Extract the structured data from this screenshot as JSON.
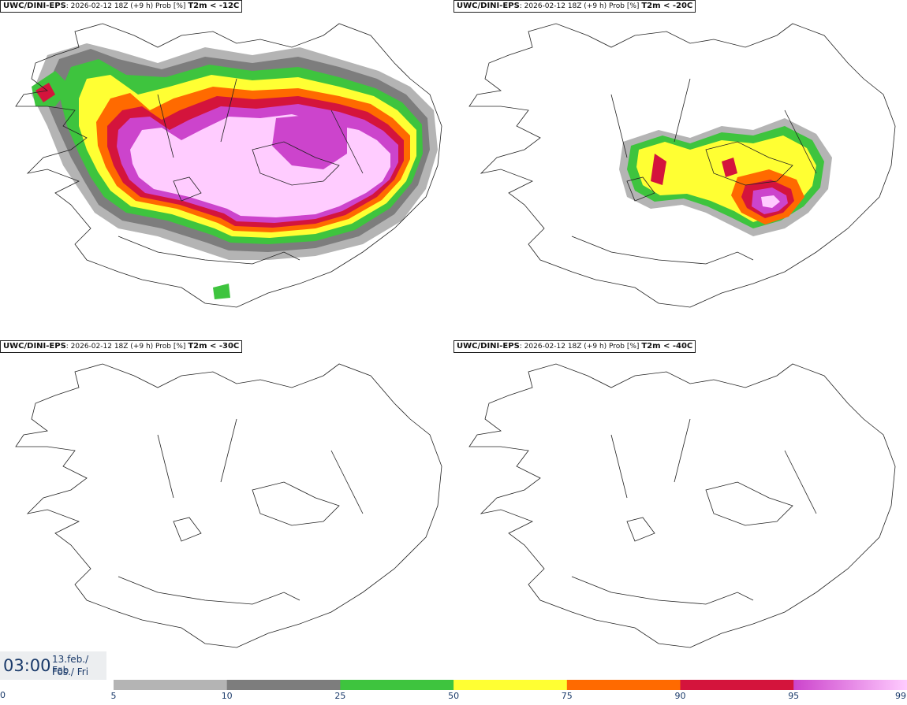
{
  "panels": [
    {
      "source": "UWC/DINI-EPS",
      "run": ": 2026-02-12 18Z (+9 h) Prob [%] ",
      "threshold": "T2m < -12C"
    },
    {
      "source": "UWC/DINI-EPS",
      "run": ": 2026-02-12 18Z (+9 h) Prob [%] ",
      "threshold": "T2m < -20C"
    },
    {
      "source": "UWC/DINI-EPS",
      "run": ": 2026-02-12 18Z (+9 h) Prob [%] ",
      "threshold": "T2m < -30C"
    },
    {
      "source": "UWC/DINI-EPS",
      "run": ": 2026-02-12 18Z (+9 h) Prob [%] ",
      "threshold": "T2m < -40C"
    }
  ],
  "valid_time": {
    "time": "03:00",
    "date_line": "13.feb./ Feb",
    "day_line": "Fös./ Fri"
  },
  "legend": {
    "zero_label": "0",
    "bins": [
      {
        "from": 5,
        "to": 10,
        "color": "#b4b4b4"
      },
      {
        "from": 10,
        "to": 25,
        "color": "#7d7d7d"
      },
      {
        "from": 25,
        "to": 50,
        "color": "#3ec43e"
      },
      {
        "from": 50,
        "to": 75,
        "color": "#ffff33"
      },
      {
        "from": 75,
        "to": 90,
        "color": "#ff6a00"
      },
      {
        "from": 90,
        "to": 95,
        "color": "#d4143c"
      },
      {
        "from": 95,
        "to": 99,
        "color": "#cc44cc"
      }
    ],
    "tick_labels": [
      "5",
      "10",
      "25",
      "50",
      "75",
      "90",
      "95",
      "99"
    ],
    "top_color": "#ffccff"
  }
}
